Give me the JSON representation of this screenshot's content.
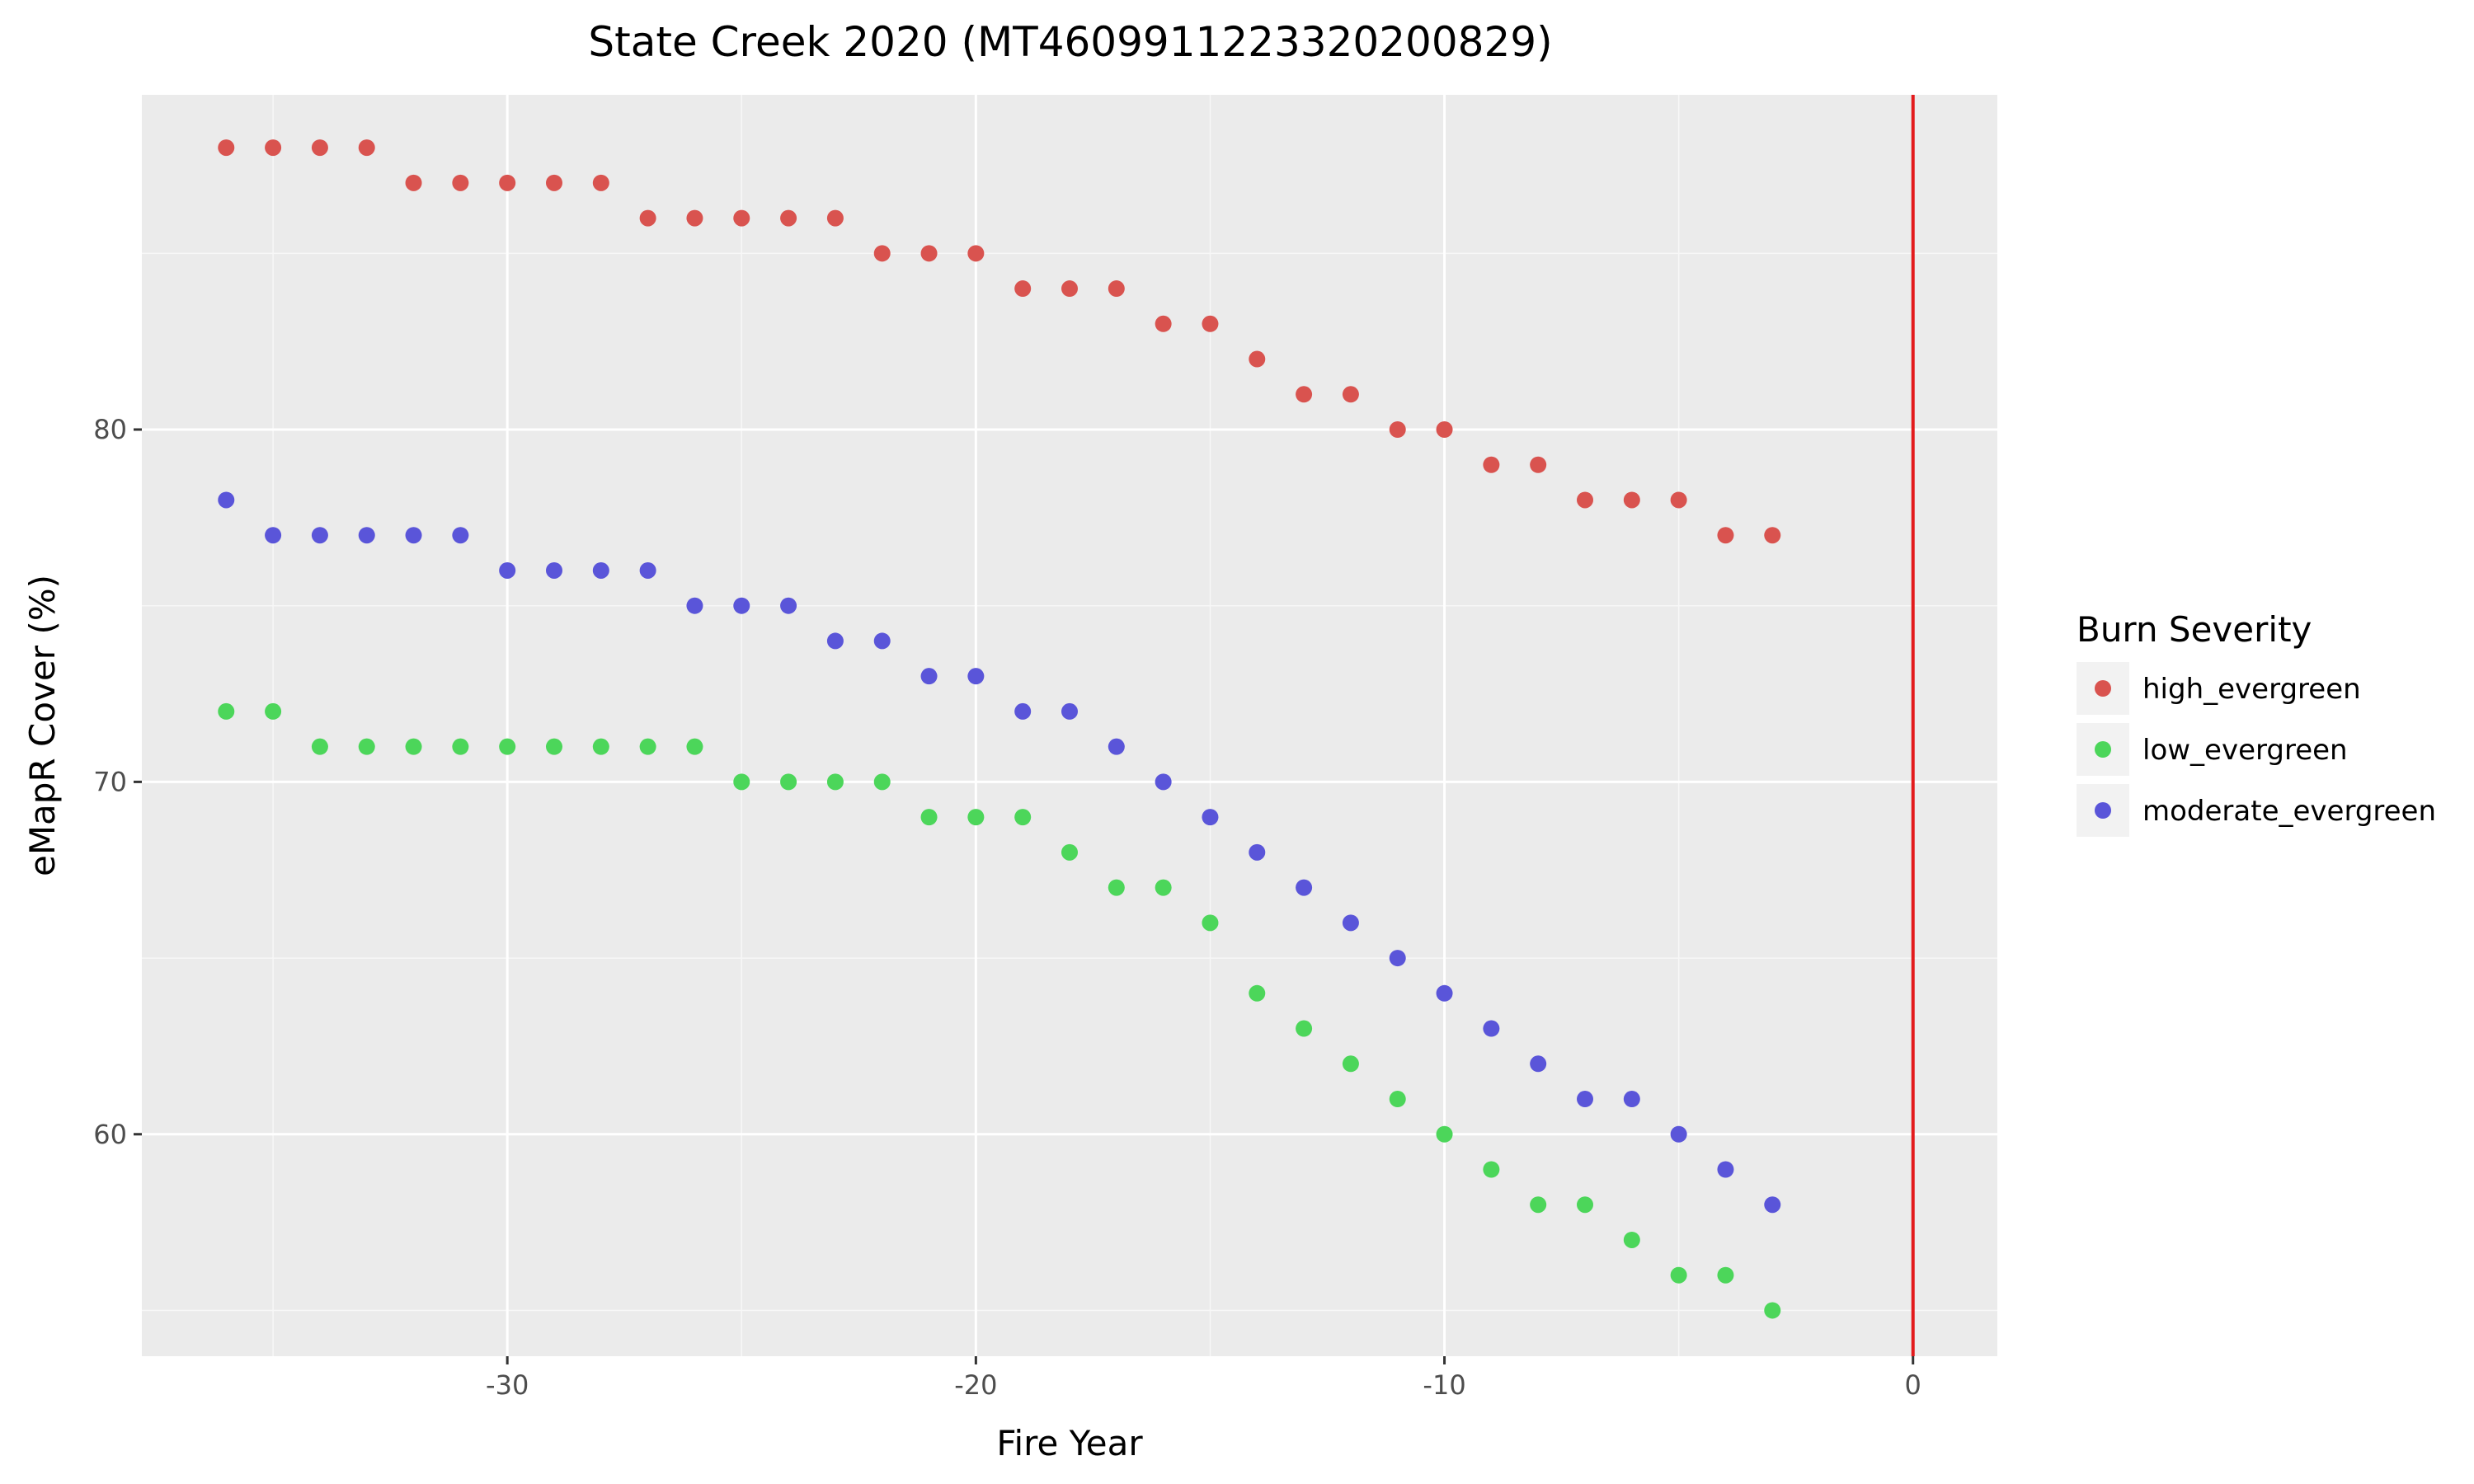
{
  "chart_data": {
    "type": "scatter",
    "title": "State Creek 2020 (MT4609911223320200829)",
    "xlabel": "Fire Year",
    "ylabel": "eMapR Cover (%)",
    "xlim": [
      -37.8,
      1.8
    ],
    "ylim": [
      53.7,
      89.5
    ],
    "x_ticks": [
      -30,
      -20,
      -10,
      0
    ],
    "y_ticks": [
      60,
      70,
      80
    ],
    "x_minor": [
      -35,
      -25,
      -15,
      -5
    ],
    "y_minor": [
      55,
      65,
      75,
      85
    ],
    "grid": true,
    "legend": {
      "title": "Burn Severity",
      "position": "right"
    },
    "vline": {
      "x": 0,
      "color": "#e31a1c"
    },
    "series": [
      {
        "name": "high_evergreen",
        "color": "#d9534f",
        "x": [
          -36,
          -35,
          -34,
          -33,
          -32,
          -31,
          -30,
          -29,
          -28,
          -27,
          -26,
          -25,
          -24,
          -23,
          -22,
          -21,
          -20,
          -19,
          -18,
          -17,
          -16,
          -15,
          -14,
          -13,
          -12,
          -11,
          -10,
          -9,
          -8,
          -7,
          -6,
          -5,
          -4,
          -3
        ],
        "y": [
          88,
          88,
          88,
          88,
          87,
          87,
          87,
          87,
          87,
          86,
          86,
          86,
          86,
          86,
          85,
          85,
          85,
          84,
          84,
          84,
          83,
          83,
          82,
          81,
          81,
          80,
          80,
          79,
          79,
          78,
          78,
          78,
          77,
          77
        ]
      },
      {
        "name": "low_evergreen",
        "color": "#4cd65a",
        "x": [
          -36,
          -35,
          -34,
          -33,
          -32,
          -31,
          -30,
          -29,
          -28,
          -27,
          -26,
          -25,
          -24,
          -23,
          -22,
          -21,
          -20,
          -19,
          -18,
          -17,
          -16,
          -15,
          -14,
          -13,
          -12,
          -11,
          -10,
          -9,
          -8,
          -7,
          -6,
          -5,
          -4,
          -3
        ],
        "y": [
          72,
          72,
          71,
          71,
          71,
          71,
          71,
          71,
          71,
          71,
          71,
          70,
          70,
          70,
          70,
          69,
          69,
          69,
          68,
          67,
          67,
          66,
          64,
          63,
          62,
          61,
          60,
          59,
          58,
          58,
          57,
          56,
          56,
          55
        ]
      },
      {
        "name": "moderate_evergreen",
        "color": "#5a55d9",
        "x": [
          -36,
          -35,
          -34,
          -33,
          -32,
          -31,
          -30,
          -29,
          -28,
          -27,
          -26,
          -25,
          -24,
          -23,
          -22,
          -21,
          -20,
          -19,
          -18,
          -17,
          -16,
          -15,
          -14,
          -13,
          -12,
          -11,
          -10,
          -9,
          -8,
          -7,
          -6,
          -5,
          -4,
          -3
        ],
        "y": [
          78,
          77,
          77,
          77,
          77,
          77,
          76,
          76,
          76,
          76,
          75,
          75,
          75,
          74,
          74,
          73,
          73,
          72,
          72,
          71,
          70,
          69,
          68,
          67,
          66,
          65,
          64,
          63,
          62,
          61,
          61,
          60,
          59,
          58
        ]
      }
    ]
  }
}
